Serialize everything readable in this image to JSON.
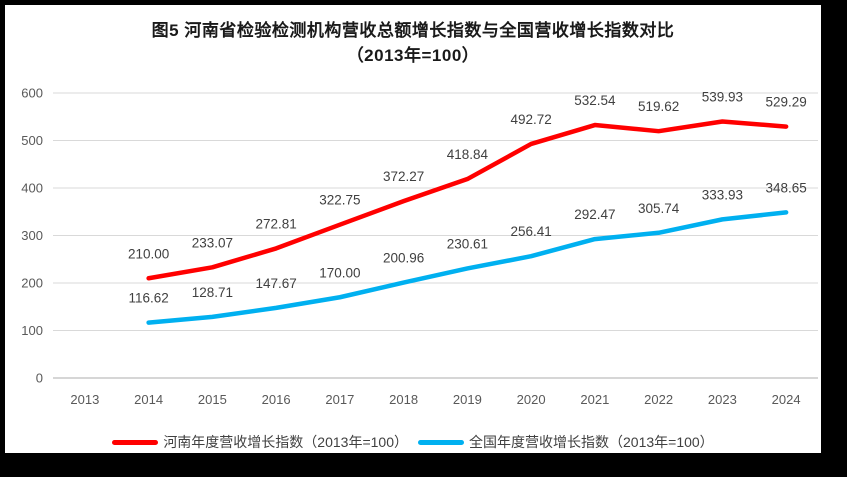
{
  "title": {
    "line1": "图5  河南省检验检测机构营收总额增长指数与全国营收增长指数对比",
    "line2": "（2013年=100）"
  },
  "chart_data": {
    "type": "line",
    "categories": [
      "2013",
      "2014",
      "2015",
      "2016",
      "2017",
      "2018",
      "2019",
      "2020",
      "2021",
      "2022",
      "2023",
      "2024"
    ],
    "series": [
      {
        "name": "河南年度营收增长指数（2013年=100）",
        "color": "#FF0000",
        "values": [
          null,
          210.0,
          233.07,
          272.81,
          322.75,
          372.27,
          418.84,
          492.72,
          532.54,
          519.62,
          539.93,
          529.29
        ]
      },
      {
        "name": "全国年度营收增长指数（2013年=100）",
        "color": "#00B0F0",
        "values": [
          null,
          116.62,
          128.71,
          147.67,
          170.0,
          200.96,
          230.61,
          256.41,
          292.47,
          305.74,
          333.93,
          348.65
        ]
      }
    ],
    "title": "图5  河南省检验检测机构营收总额增长指数与全国营收增长指数对比（2013年=100）",
    "xlabel": "",
    "ylabel": "",
    "ylim": [
      0,
      600
    ],
    "ytick_interval": 100,
    "yticks": [
      "0",
      "100",
      "200",
      "300",
      "400",
      "500",
      "600"
    ],
    "grid": true,
    "data_labels": true,
    "data_label_decimals": 2,
    "legend_position": "bottom"
  },
  "colors": {
    "gridline": "#D9D9D9",
    "axis_line": "#C8C8C8",
    "axis_label": "#595959",
    "data_label": "#404040",
    "legend_text": "#404040",
    "title_text": "#1a1a1a",
    "background": "#FFFFFF",
    "border": "#000000"
  }
}
